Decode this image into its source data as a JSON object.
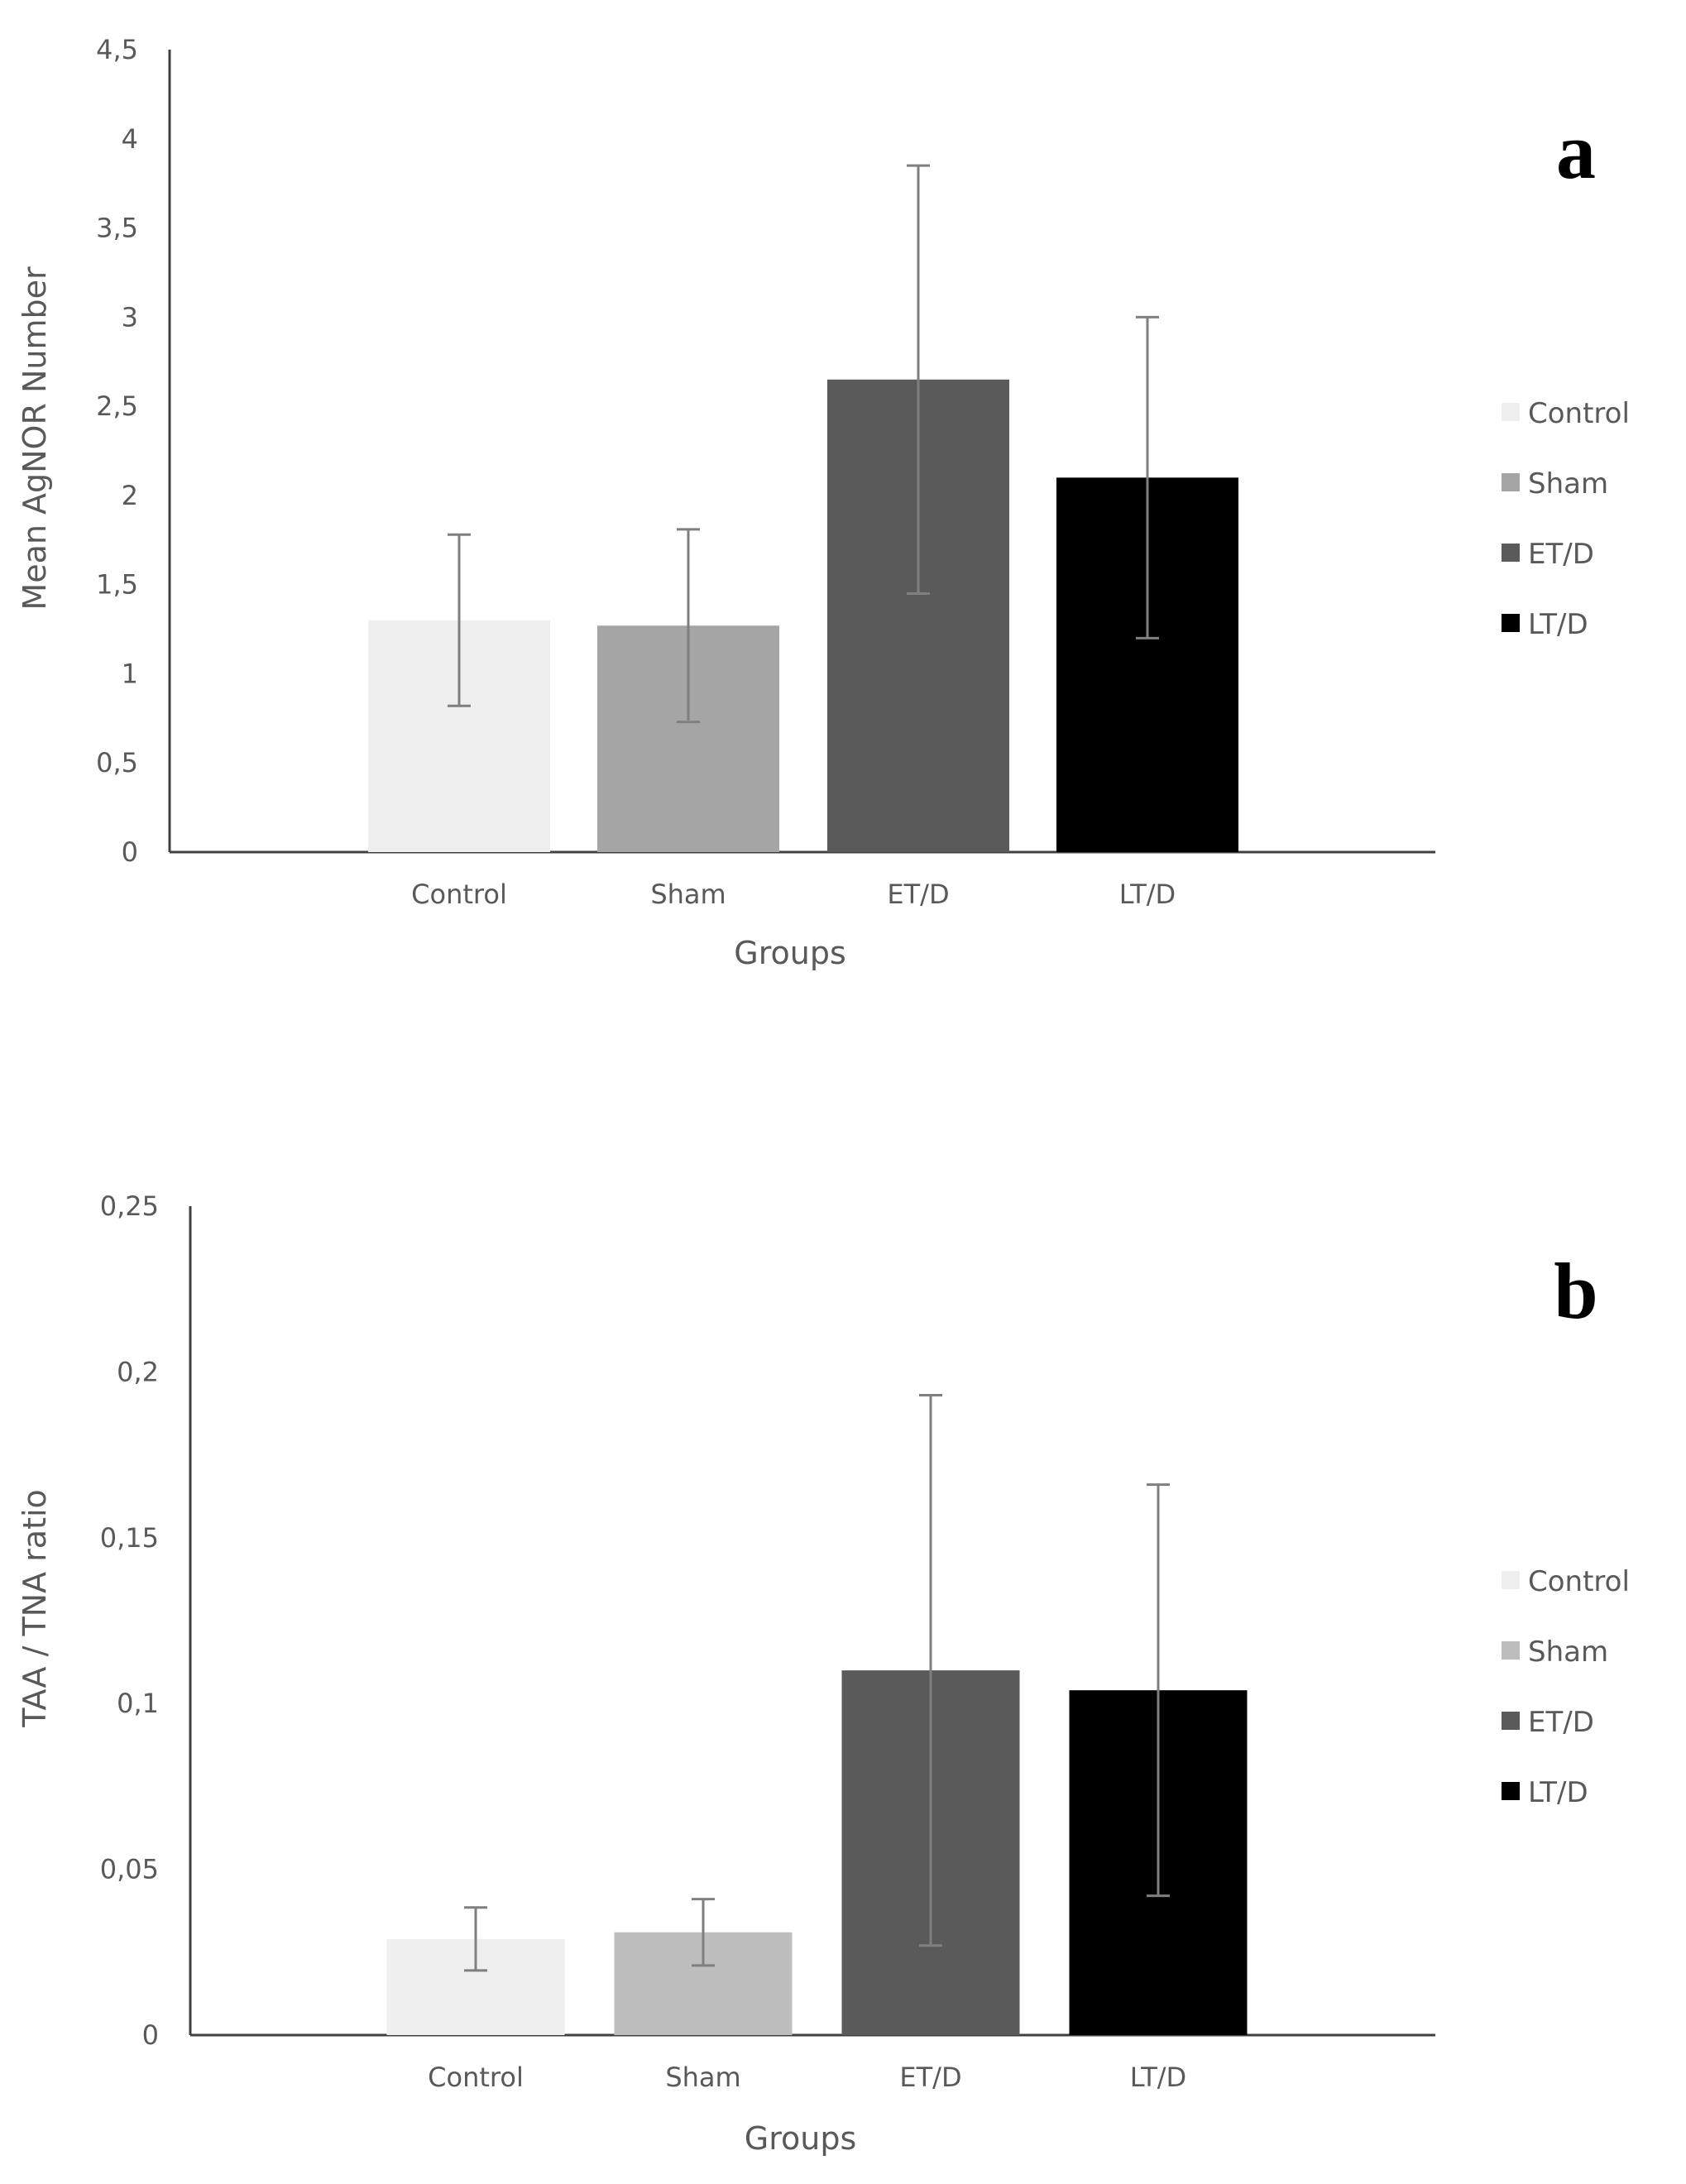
{
  "chart_data": [
    {
      "type": "bar",
      "panel_label": "a",
      "categories": [
        "Control",
        "Sham",
        "ET/D",
        "LT/D"
      ],
      "values": [
        1.3,
        1.27,
        2.65,
        2.1
      ],
      "error": [
        0.48,
        0.54,
        1.2,
        0.9
      ],
      "colors": [
        "#efefef",
        "#a5a5a5",
        "#5a5a5a",
        "#000000"
      ],
      "xlabel": "Groups",
      "ylabel": "Mean AgNOR Number",
      "ylim": [
        0,
        4.5
      ],
      "yticks": [
        {
          "value": 0,
          "label": "0"
        },
        {
          "value": 0.5,
          "label": "0,5"
        },
        {
          "value": 1,
          "label": "1"
        },
        {
          "value": 1.5,
          "label": "1,5"
        },
        {
          "value": 2,
          "label": "2"
        },
        {
          "value": 2.5,
          "label": "2,5"
        },
        {
          "value": 3,
          "label": "3"
        },
        {
          "value": 3.5,
          "label": "3,5"
        },
        {
          "value": 4,
          "label": "4"
        },
        {
          "value": 4.5,
          "label": "4,5"
        }
      ],
      "legend": [
        "Control",
        "Sham",
        "ET/D",
        "LT/D"
      ],
      "legend_position": "right",
      "grid": false
    },
    {
      "type": "bar",
      "panel_label": "b",
      "categories": [
        "Control",
        "Sham",
        "ET/D",
        "LT/D"
      ],
      "values": [
        0.029,
        0.031,
        0.11,
        0.104
      ],
      "error": [
        0.0095,
        0.01,
        0.083,
        0.062
      ],
      "colors": [
        "#efefef",
        "#bdbdbd",
        "#5a5a5a",
        "#000000"
      ],
      "xlabel": "Groups",
      "ylabel": "TAA / TNA ratio",
      "ylim": [
        0,
        0.25
      ],
      "yticks": [
        {
          "value": 0,
          "label": "0"
        },
        {
          "value": 0.05,
          "label": "0,05"
        },
        {
          "value": 0.1,
          "label": "0,1"
        },
        {
          "value": 0.15,
          "label": "0,15"
        },
        {
          "value": 0.2,
          "label": "0,2"
        },
        {
          "value": 0.25,
          "label": "0,25"
        }
      ],
      "legend": [
        "Control",
        "Sham",
        "ET/D",
        "LT/D"
      ],
      "legend_position": "right",
      "grid": false
    }
  ]
}
